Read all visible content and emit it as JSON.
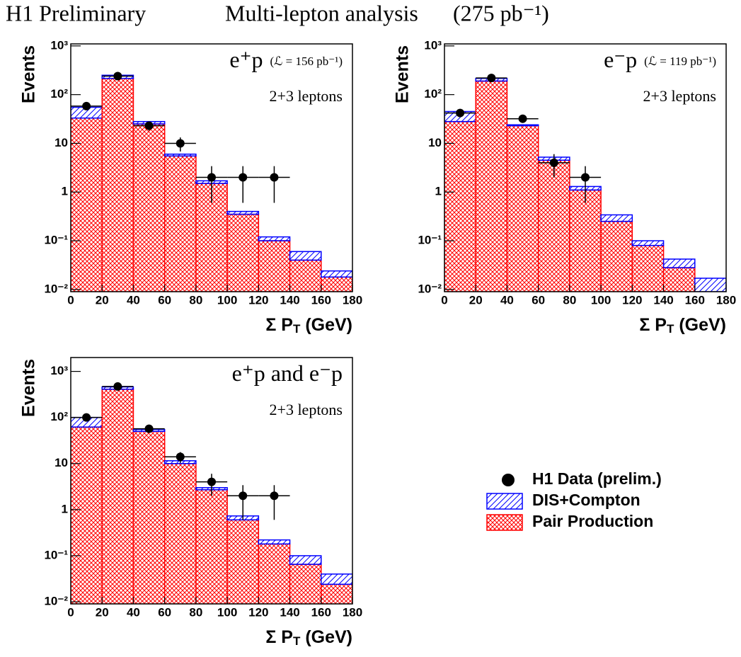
{
  "header": [
    "H1 Preliminary",
    "Multi-lepton analysis",
    "(275 pb⁻¹)"
  ],
  "chart_data": [
    {
      "type": "histogram",
      "title": "e⁺p",
      "subtitle": "(ℒ = 156 pb⁻¹)",
      "annotation": "2+3 leptons",
      "ylabel": "Events",
      "xlabel": [
        "Σ P",
        "T",
        " (GeV)"
      ],
      "bins": [
        0,
        20,
        40,
        60,
        80,
        100,
        120,
        140,
        160,
        180
      ],
      "xlim": [
        0,
        180
      ],
      "xticks": [
        0,
        20,
        40,
        60,
        80,
        100,
        120,
        140,
        160,
        180
      ],
      "ylim": [
        0.009,
        1100
      ],
      "log_y": true,
      "yticks": [
        {
          "value": 0.01,
          "label": "10⁻²"
        },
        {
          "value": 0.1,
          "label": "10⁻¹"
        },
        1,
        10,
        {
          "value": 100,
          "label": "10²"
        },
        {
          "value": 1000,
          "label": "10³"
        }
      ],
      "series": [
        {
          "name": "H1 Data (prelim.)",
          "color": "#000000",
          "marker": "circle",
          "values": [
            58,
            240,
            23,
            10,
            2,
            2,
            2,
            null,
            null
          ],
          "errors": [
            7.6,
            15.5,
            4.8,
            3.2,
            1.4,
            1.4,
            1.4,
            null,
            null
          ]
        },
        {
          "name": "DIS+Compton",
          "color": "#0000ff",
          "hatch": "single",
          "values": [
            22,
            35,
            3,
            0.5,
            0.2,
            0.05,
            0.02,
            0.02,
            0.006
          ]
        },
        {
          "name": "Pair Production",
          "color": "#ff0000",
          "hatch": "cross",
          "values": [
            33,
            215,
            25,
            5.5,
            1.5,
            0.35,
            0.1,
            0.04,
            0.018
          ]
        }
      ]
    },
    {
      "type": "histogram",
      "title": "e⁻p",
      "subtitle": "(ℒ = 119 pb⁻¹)",
      "annotation": "2+3 leptons",
      "ylabel": "Events",
      "xlabel": [
        "Σ P",
        "T",
        " (GeV)"
      ],
      "bins": [
        0,
        20,
        40,
        60,
        80,
        100,
        120,
        140,
        160,
        180
      ],
      "xlim": [
        0,
        180
      ],
      "xticks": [
        0,
        20,
        40,
        60,
        80,
        100,
        120,
        140,
        160,
        180
      ],
      "ylim": [
        0.009,
        1100
      ],
      "log_y": true,
      "yticks": [
        {
          "value": 0.01,
          "label": "10⁻²"
        },
        {
          "value": 0.1,
          "label": "10⁻¹"
        },
        1,
        10,
        {
          "value": 100,
          "label": "10²"
        },
        {
          "value": 1000,
          "label": "10³"
        }
      ],
      "series": [
        {
          "name": "H1 Data (prelim.)",
          "color": "#000000",
          "marker": "circle",
          "values": [
            42,
            220,
            32,
            4,
            2,
            null,
            null,
            null,
            null
          ],
          "errors": [
            6.5,
            14.8,
            5.7,
            2,
            1.4,
            null,
            null,
            null,
            null
          ]
        },
        {
          "name": "DIS+Compton",
          "color": "#0000ff",
          "hatch": "single",
          "values": [
            17,
            25,
            1,
            0.7,
            0.2,
            0.09,
            0.02,
            0.014,
            0.009
          ]
        },
        {
          "name": "Pair Production",
          "color": "#ff0000",
          "hatch": "cross",
          "values": [
            28,
            190,
            23,
            4.5,
            1.1,
            0.25,
            0.08,
            0.028,
            0.008
          ]
        }
      ]
    },
    {
      "type": "histogram",
      "title": "e⁺p and e⁻p",
      "annotation": "2+3 leptons",
      "ylabel": "Events",
      "xlabel": [
        "Σ P",
        "T",
        " (GeV)"
      ],
      "bins": [
        0,
        20,
        40,
        60,
        80,
        100,
        120,
        140,
        160,
        180
      ],
      "xlim": [
        0,
        180
      ],
      "xticks": [
        0,
        20,
        40,
        60,
        80,
        100,
        120,
        140,
        160,
        180
      ],
      "ylim": [
        0.009,
        2000
      ],
      "log_y": true,
      "yticks": [
        {
          "value": 0.01,
          "label": "10⁻²"
        },
        {
          "value": 0.1,
          "label": "10⁻¹"
        },
        1,
        10,
        {
          "value": 100,
          "label": "10²"
        },
        {
          "value": 1000,
          "label": "10³"
        }
      ],
      "series": [
        {
          "name": "H1 Data (prelim.)",
          "color": "#000000",
          "marker": "circle",
          "values": [
            100,
            470,
            57,
            14,
            4,
            2,
            2,
            null,
            null
          ],
          "errors": [
            10,
            21.7,
            7.5,
            3.7,
            2,
            1.4,
            1.4,
            null,
            null
          ]
        },
        {
          "name": "DIS+Compton",
          "color": "#0000ff",
          "hatch": "single",
          "values": [
            38,
            50,
            5,
            1.5,
            0.3,
            0.13,
            0.04,
            0.035,
            0.016
          ]
        },
        {
          "name": "Pair Production",
          "color": "#ff0000",
          "hatch": "cross",
          "values": [
            62,
            410,
            50,
            10,
            2.7,
            0.6,
            0.18,
            0.065,
            0.024
          ]
        }
      ]
    }
  ]
}
